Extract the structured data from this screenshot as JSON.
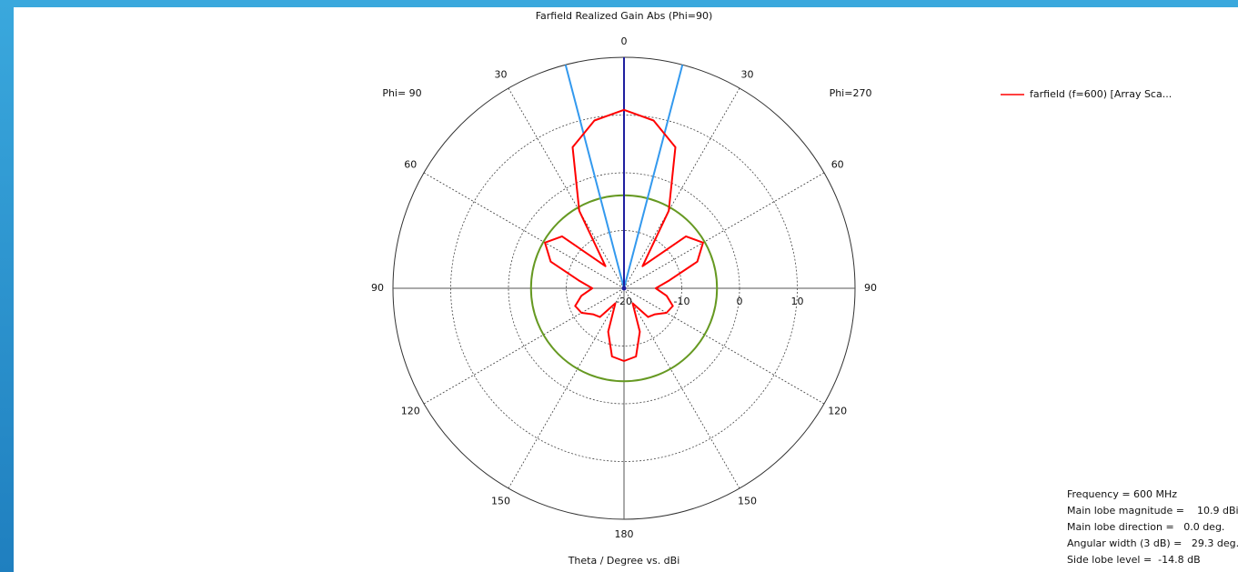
{
  "chart_data": {
    "type": "polar",
    "title": "Farfield Realized Gain Abs (Phi=90)",
    "xlabel": "Theta / Degree vs. dBi",
    "left_label": "Phi= 90",
    "right_label": "Phi=270",
    "theta_ticks": [
      0,
      30,
      60,
      90,
      120,
      150,
      180,
      {
        "value": -150,
        "label": "150"
      },
      {
        "value": -120,
        "label": "120"
      },
      {
        "value": -90,
        "label": "90"
      },
      {
        "value": -60,
        "label": "60"
      },
      {
        "value": -30,
        "label": "30"
      }
    ],
    "rlim": [
      -20,
      20
    ],
    "rticks": [
      -20,
      -10,
      0,
      10
    ],
    "grid": true,
    "series": [
      {
        "name": "farfield (f=600) [Array Sca...",
        "color": "#ff0000",
        "x": [
          -180,
          -170,
          -160,
          -150,
          -140,
          -130,
          -120,
          -110,
          -100,
          -90,
          -80,
          -70,
          -60,
          -50,
          -40,
          -30,
          -20,
          -10,
          0,
          10,
          20,
          30,
          40,
          50,
          60,
          70,
          80,
          90,
          100,
          110,
          120,
          130,
          140,
          150,
          160,
          170,
          180
        ],
        "values": [
          -7.4,
          -8,
          -12,
          -17,
          -13.5,
          -13,
          -11.5,
          -11,
          -12.5,
          -14.5,
          -12,
          -6.5,
          -4.2,
          -6,
          -15,
          -4.5,
          6,
          9.5,
          10.9,
          9.5,
          6,
          -4.5,
          -15,
          -6,
          -4.2,
          -6.5,
          -12,
          -14.5,
          -12.5,
          -11,
          -11.5,
          -13,
          -13.5,
          -17,
          -12,
          -8,
          -7.4
        ]
      }
    ],
    "main_lobe_direction": 0,
    "main_lobe_color": "#1f1f9f",
    "beamwidth_edges": [
      -14.65,
      14.65
    ],
    "beamwidth_color": "#3399ee",
    "threshold": -3.9,
    "threshold_color": "#669922",
    "info": [
      "Frequency = 600 MHz",
      "Main lobe magnitude =    10.9 dBi",
      "Main lobe direction =   0.0 deg.",
      "Angular width (3 dB) =   29.3 deg.",
      "Side lobe level =  -14.8 dB"
    ]
  }
}
